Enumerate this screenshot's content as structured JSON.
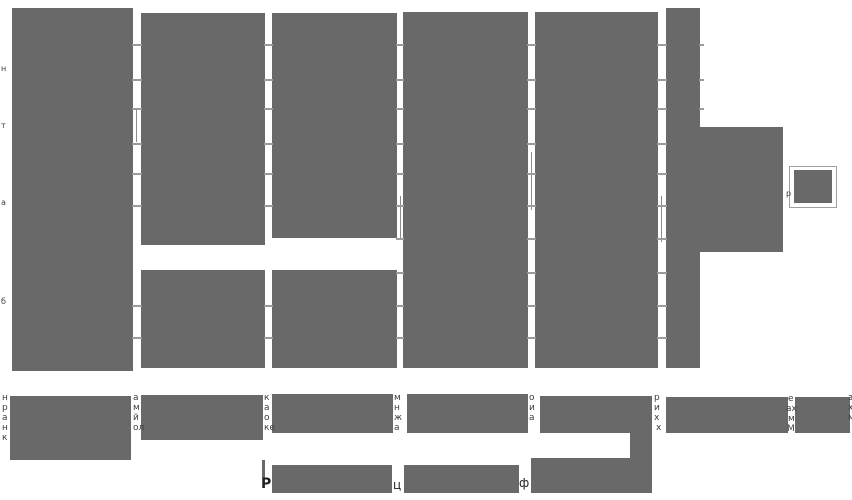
{
  "colors": {
    "background": "#ffffff",
    "block_gray": "#696969",
    "row_divider": "#9b9b9b",
    "border_line": "#8c8c8c",
    "fragment_text": "#3c3c3c",
    "bold_text": "#1f1f1f",
    "popup_outline": "#a0a0a0"
  },
  "fragments": {
    "left_margin_upper": [
      "н",
      "т",
      "а",
      "б"
    ],
    "popup_edge": "р",
    "bottom": {
      "left_margin": [
        "н",
        "р",
        "а",
        "н",
        "к"
      ],
      "gap_1": [
        "а",
        "м",
        "й",
        "ол"
      ],
      "gap_2": [
        "к",
        "а",
        "о",
        "ке"
      ],
      "gap_3": [
        "м",
        "н",
        "ж",
        "а"
      ],
      "gap_4": [
        "о",
        "и",
        "а"
      ],
      "gap_5": [
        "р",
        "и",
        "х",
        "х"
      ],
      "gap_6": [
        "е",
        "ах",
        "м",
        "М"
      ],
      "right_edge": [
        "з",
        "х",
        "м"
      ],
      "bold_row": [
        "Р",
        "ц",
        "ф"
      ]
    }
  }
}
